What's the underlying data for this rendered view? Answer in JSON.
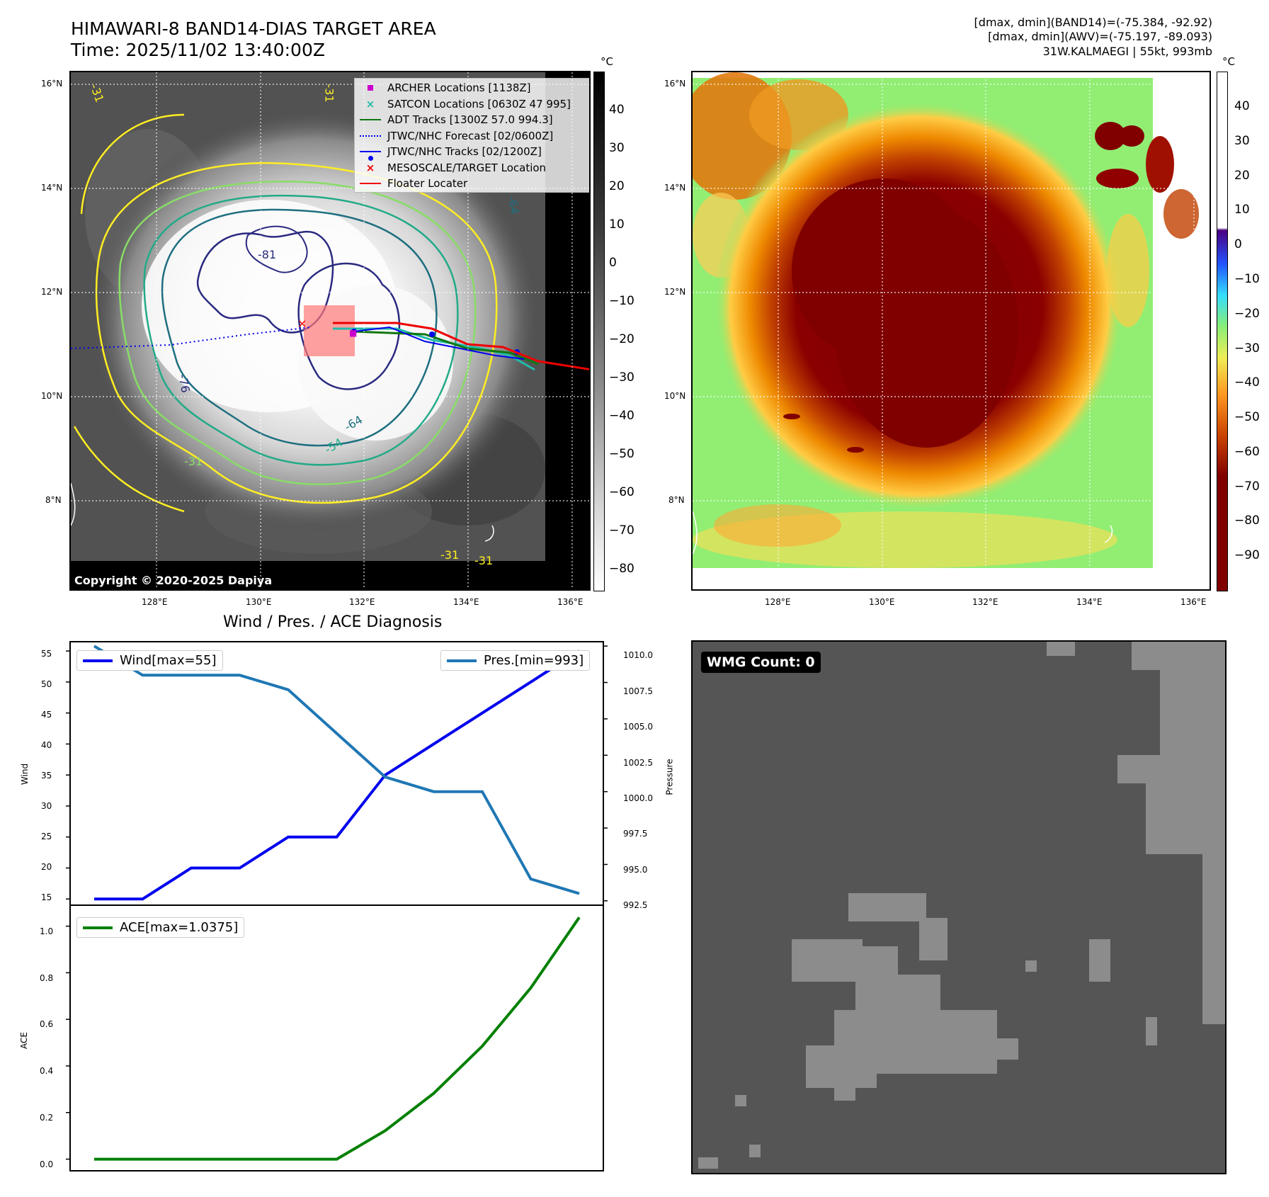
{
  "header": {
    "title_line1": "HIMAWARI-8 BAND14-DIAS TARGET AREA",
    "title_line2": "Time: 2025/11/02 13:40:00Z",
    "info_line1": "[dmax, dmin](BAND14)=(-75.384, -92.92)",
    "info_line2": "[dmax, dmin](AWV)=(-75.197, -89.093)",
    "info_line3": "31W.KALMAEGI | 55kt, 993mb"
  },
  "map_axes": {
    "lat_labels": [
      "16°N",
      "14°N",
      "12°N",
      "10°N",
      "8°N"
    ],
    "lon_labels": [
      "128°E",
      "130°E",
      "132°E",
      "134°E",
      "136°E"
    ]
  },
  "ir_panel": {
    "legend": [
      {
        "label": "ARCHER Locations [1138Z]",
        "symbol": "square",
        "color": "#cc00cc"
      },
      {
        "label": "SATCON Locations [0630Z 47 995]",
        "symbol": "x",
        "color": "#22bbaa"
      },
      {
        "label": "ADT Tracks [1300Z 57.0 994.3]",
        "symbol": "line",
        "color": "#117711"
      },
      {
        "label": "JTWC/NHC Forecast [02/0600Z]",
        "symbol": "dotted",
        "color": "#0000ee"
      },
      {
        "label": "JTWC/NHC Tracks [02/1200Z]",
        "symbol": "line-dot",
        "color": "#0000ee"
      },
      {
        "label": "MESOSCALE/TARGET Location",
        "symbol": "x",
        "color": "#ee0000"
      },
      {
        "label": "Floater Locater",
        "symbol": "line",
        "color": "#ee0000"
      }
    ],
    "contour_labels": [
      "-81",
      "-76",
      "-64",
      "-54",
      "-31",
      "-31",
      "-31",
      "-31",
      "-64",
      "-31"
    ],
    "copyright": "Copyright © 2020-2025 Dapiya",
    "colorbar_unit": "°C",
    "colorbar_ticks": [
      "40",
      "30",
      "20",
      "10",
      "0",
      "−10",
      "−20",
      "−30",
      "−40",
      "−50",
      "−60",
      "−70",
      "−80"
    ]
  },
  "awv_panel": {
    "colorbar_unit": "°C",
    "colorbar_ticks": [
      "40",
      "30",
      "20",
      "10",
      "0",
      "−10",
      "−20",
      "−30",
      "−40",
      "−50",
      "−60",
      "−70",
      "−80",
      "−90"
    ]
  },
  "wmg_panel": {
    "label": "WMG Count: 0"
  },
  "chart_data": [
    {
      "type": "line",
      "title": "Wind / Pres. / ACE Diagnosis",
      "x": [
        0,
        1,
        2,
        3,
        4,
        5,
        6,
        7,
        8,
        9,
        10
      ],
      "series": [
        {
          "name": "Wind[max=55]",
          "axis": "left",
          "color": "#0000ee",
          "values": [
            15,
            15,
            20,
            20,
            25,
            25,
            35,
            40,
            45,
            50,
            55
          ]
        },
        {
          "name": "Pres.[min=993]",
          "axis": "right",
          "color": "#1f77b4",
          "values": [
            1010,
            1008,
            1008,
            1008,
            1007,
            1004,
            1001,
            1000,
            1000,
            994,
            993
          ]
        }
      ],
      "ylabel": "Wind",
      "ylabel_right": "Pressure",
      "ylim": [
        14,
        56.5
      ],
      "ylim_right": [
        992.2,
        1010.3
      ],
      "yticks": [
        "55",
        "50",
        "45",
        "40",
        "35",
        "30",
        "25",
        "20",
        "15"
      ],
      "yticks_right": [
        "1010.0",
        "1007.5",
        "1005.0",
        "1002.5",
        "1000.0",
        "997.5",
        "995.0",
        "992.5"
      ]
    },
    {
      "type": "line",
      "title": "",
      "x": [
        0,
        1,
        2,
        3,
        4,
        5,
        6,
        7,
        8,
        9,
        10
      ],
      "series": [
        {
          "name": "ACE[max=1.0375]",
          "color": "#008000",
          "values": [
            0,
            0,
            0,
            0,
            0,
            0,
            0.1225,
            0.2825,
            0.485,
            0.735,
            1.0375
          ]
        }
      ],
      "ylabel": "ACE",
      "ylim": [
        -0.05,
        1.09
      ],
      "yticks": [
        "1.0",
        "0.8",
        "0.6",
        "0.4",
        "0.2",
        "0.0"
      ]
    }
  ]
}
